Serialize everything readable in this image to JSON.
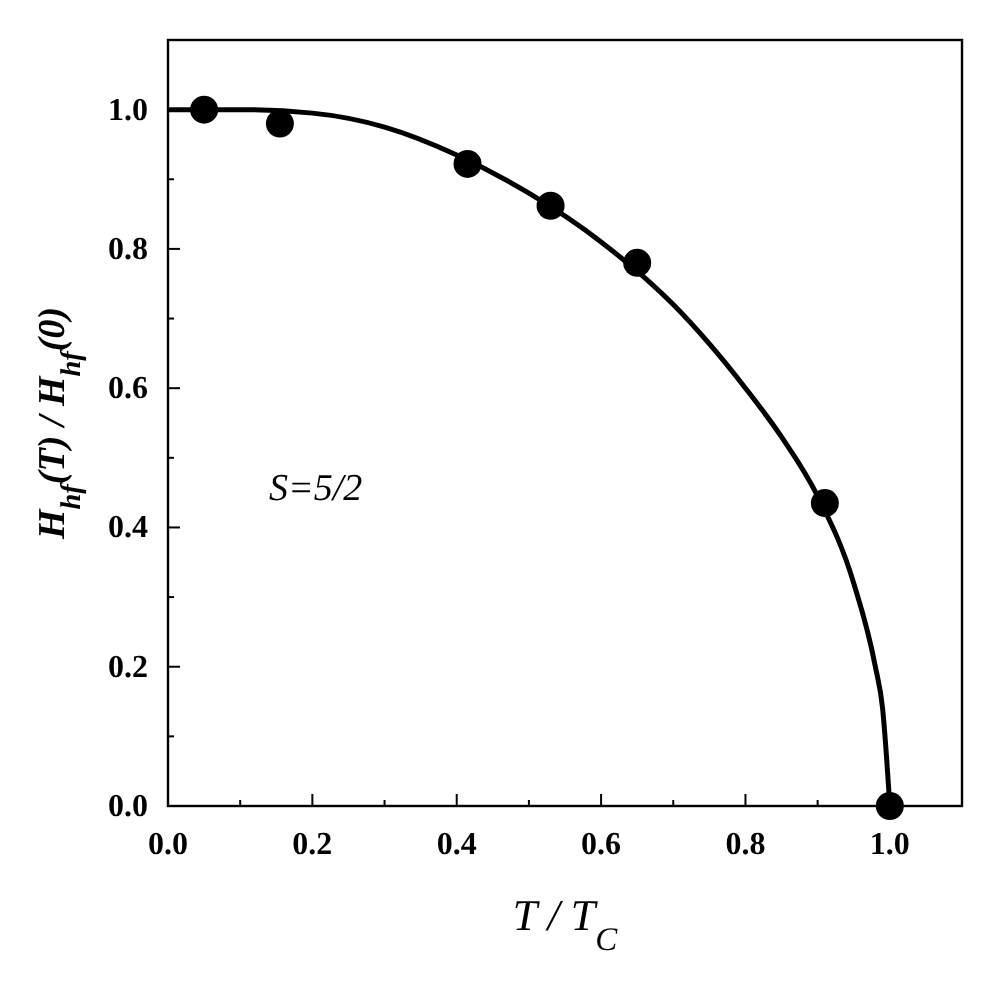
{
  "chart_data": {
    "type": "scatter",
    "xlabel": "T / T$_{C}$",
    "ylabel": "H$_{hf}$(T) / H$_{hf}$(0)",
    "annotations": [
      "S=5/2"
    ],
    "xlim": [
      0,
      1.1
    ],
    "ylim": [
      0,
      1.1
    ],
    "xticks": [
      {
        "value": 0,
        "label": "0.0"
      },
      {
        "value": 0.1,
        "label": null
      },
      {
        "value": 0.2,
        "label": "0.2"
      },
      {
        "value": 0.3,
        "label": null
      },
      {
        "value": 0.4,
        "label": "0.4"
      },
      {
        "value": 0.5,
        "label": null
      },
      {
        "value": 0.6,
        "label": "0.6"
      },
      {
        "value": 0.7,
        "label": null
      },
      {
        "value": 0.8,
        "label": "0.8"
      },
      {
        "value": 0.9,
        "label": null
      },
      {
        "value": 1,
        "label": "1.0"
      }
    ],
    "yticks": [
      {
        "value": 0,
        "label": "0.0"
      },
      {
        "value": 0.1,
        "label": null
      },
      {
        "value": 0.2,
        "label": "0.2"
      },
      {
        "value": 0.3,
        "label": null
      },
      {
        "value": 0.4,
        "label": "0.4"
      },
      {
        "value": 0.5,
        "label": null
      },
      {
        "value": 0.6,
        "label": "0.6"
      },
      {
        "value": 0.7,
        "label": null
      },
      {
        "value": 0.8,
        "label": "0.8"
      },
      {
        "value": 0.9,
        "label": null
      },
      {
        "value": 1,
        "label": "1.0"
      }
    ],
    "grid": false,
    "series": [
      {
        "marker": "circle",
        "color": "#000000",
        "x": [
          0.05,
          0.155,
          0.415,
          0.53,
          0.65,
          0.91,
          1.0
        ],
        "values": [
          1.0,
          0.98,
          0.922,
          0.862,
          0.78,
          0.435,
          0.0
        ]
      },
      {
        "type": "line",
        "color": "#000000",
        "x": [
          0,
          0.1,
          0.2,
          0.3,
          0.4,
          0.5,
          0.6,
          0.7,
          0.8,
          0.85,
          0.9,
          0.95,
          0.98,
          0.99,
          1.0
        ],
        "values": [
          1.0,
          1.0,
          0.995,
          0.975,
          0.935,
          0.88,
          0.81,
          0.72,
          0.6,
          0.53,
          0.445,
          0.32,
          0.2,
          0.14,
          0.0
        ]
      }
    ]
  }
}
